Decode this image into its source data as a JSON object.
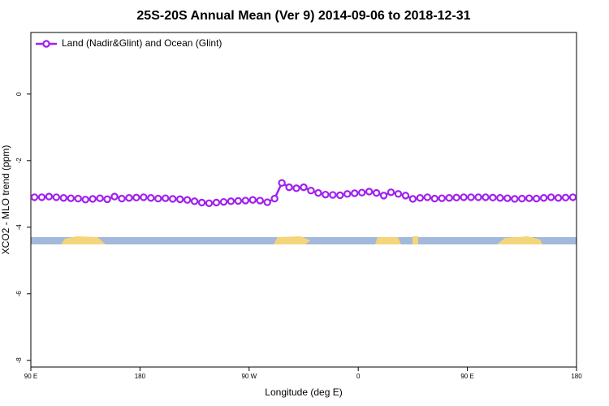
{
  "chart_data": {
    "type": "line",
    "title": "25S-20S Annual Mean (Ver 9)   2014-09-06 to 2018-12-31",
    "x_label": "Longitude (deg E)",
    "y_label": "XCO2 - MLO trend (ppm)",
    "x": [
      93,
      99,
      105,
      111,
      117,
      123,
      129,
      135,
      141,
      147,
      153,
      159,
      165,
      171,
      177,
      183,
      189,
      195,
      201,
      207,
      213,
      219,
      225,
      231,
      237,
      243,
      249,
      255,
      261,
      267,
      273,
      279,
      285,
      291,
      297,
      303,
      309,
      315,
      321,
      327,
      333,
      339,
      345,
      351,
      357,
      363,
      369,
      375,
      381,
      387,
      393,
      399,
      405,
      411,
      417,
      423,
      429,
      435,
      441,
      447,
      453,
      459,
      465,
      471,
      477,
      483,
      489,
      495,
      501,
      507,
      513,
      519,
      525,
      531,
      537
    ],
    "series": [
      {
        "name": "Land (Nadir&Glint) and Ocean (Glint)",
        "color": "#a020f0",
        "values": [
          -3.1,
          -3.1,
          -3.08,
          -3.1,
          -3.12,
          -3.13,
          -3.14,
          -3.17,
          -3.15,
          -3.13,
          -3.16,
          -3.08,
          -3.14,
          -3.12,
          -3.11,
          -3.1,
          -3.12,
          -3.14,
          -3.13,
          -3.15,
          -3.16,
          -3.18,
          -3.22,
          -3.26,
          -3.28,
          -3.26,
          -3.24,
          -3.22,
          -3.21,
          -3.2,
          -3.18,
          -3.2,
          -3.25,
          -3.14,
          -2.67,
          -2.8,
          -2.83,
          -2.8,
          -2.9,
          -2.97,
          -3.02,
          -3.03,
          -3.04,
          -3.0,
          -2.98,
          -2.96,
          -2.93,
          -2.97,
          -3.05,
          -2.95,
          -3.0,
          -3.05,
          -3.15,
          -3.12,
          -3.1,
          -3.14,
          -3.13,
          -3.12,
          -3.11,
          -3.1,
          -3.1,
          -3.1,
          -3.1,
          -3.11,
          -3.12,
          -3.13,
          -3.15,
          -3.14,
          -3.13,
          -3.14,
          -3.12,
          -3.1,
          -3.12,
          -3.11,
          -3.1
        ]
      }
    ],
    "xlim": [
      90,
      540
    ],
    "xticks": [
      {
        "value": 90,
        "label": "90 E"
      },
      180,
      {
        "value": 270,
        "label": "90 W"
      },
      {
        "value": 360,
        "label": "0"
      },
      {
        "value": 450,
        "label": "90 E"
      },
      {
        "value": 540,
        "label": "180"
      }
    ],
    "ylim": [
      -8.2,
      1.85
    ],
    "yticks": [
      -8,
      -6,
      -4,
      -2,
      0
    ],
    "legend": "upper left"
  }
}
